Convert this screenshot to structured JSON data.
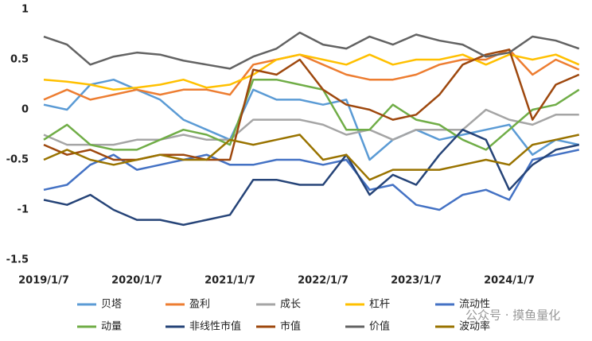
{
  "chart_data": {
    "type": "line",
    "categories": [
      "2019/1/7",
      null,
      null,
      null,
      "2020/1/7",
      null,
      null,
      null,
      "2021/1/7",
      null,
      null,
      null,
      "2022/1/7",
      null,
      null,
      null,
      "2023/1/7",
      null,
      null,
      null,
      "2024/1/7",
      null,
      null,
      null
    ],
    "ylim": [
      -1.5,
      1
    ],
    "yticks": [
      1,
      0.5,
      0,
      -0.5,
      -1,
      -1.5
    ],
    "grid": false,
    "watermark": "公众号 · 摸鱼量化",
    "series": [
      {
        "name": "贝塔",
        "color": "#5b9bd5",
        "values": [
          0.05,
          0.0,
          0.25,
          0.3,
          0.2,
          0.1,
          -0.1,
          -0.2,
          -0.3,
          0.2,
          0.1,
          0.1,
          0.05,
          0.1,
          -0.5,
          -0.3,
          -0.2,
          -0.3,
          -0.25,
          -0.2,
          -0.15,
          -0.45,
          -0.3,
          -0.35
        ]
      },
      {
        "name": "盈利",
        "color": "#ed7d31",
        "values": [
          0.1,
          0.2,
          0.1,
          0.15,
          0.2,
          0.15,
          0.2,
          0.2,
          0.15,
          0.45,
          0.5,
          0.55,
          0.45,
          0.35,
          0.3,
          0.3,
          0.35,
          0.45,
          0.5,
          0.5,
          0.6,
          0.35,
          0.5,
          0.4
        ]
      },
      {
        "name": "成长",
        "color": "#a5a5a5",
        "values": [
          -0.25,
          -0.35,
          -0.35,
          -0.35,
          -0.3,
          -0.3,
          -0.25,
          -0.3,
          -0.3,
          -0.1,
          -0.1,
          -0.1,
          -0.15,
          -0.25,
          -0.2,
          -0.3,
          -0.2,
          -0.2,
          -0.2,
          0.0,
          -0.1,
          -0.15,
          -0.05,
          -0.05
        ]
      },
      {
        "name": "杠杆",
        "color": "#ffc000",
        "values": [
          0.3,
          0.28,
          0.25,
          0.2,
          0.22,
          0.25,
          0.3,
          0.22,
          0.25,
          0.35,
          0.5,
          0.55,
          0.5,
          0.45,
          0.55,
          0.45,
          0.5,
          0.5,
          0.55,
          0.45,
          0.55,
          0.5,
          0.55,
          0.45
        ]
      },
      {
        "name": "流动性",
        "color": "#4472c4",
        "values": [
          -0.8,
          -0.75,
          -0.55,
          -0.45,
          -0.6,
          -0.55,
          -0.5,
          -0.45,
          -0.55,
          -0.55,
          -0.5,
          -0.5,
          -0.55,
          -0.5,
          -0.8,
          -0.75,
          -0.95,
          -1.0,
          -0.85,
          -0.8,
          -0.9,
          -0.5,
          -0.45,
          -0.4
        ]
      },
      {
        "name": "动量",
        "color": "#70ad47",
        "values": [
          -0.3,
          -0.15,
          -0.35,
          -0.4,
          -0.4,
          -0.3,
          -0.2,
          -0.25,
          -0.35,
          0.3,
          0.3,
          0.25,
          0.2,
          -0.2,
          -0.2,
          0.05,
          -0.1,
          -0.15,
          -0.3,
          -0.4,
          -0.2,
          0.0,
          0.05,
          0.2
        ]
      },
      {
        "name": "非线性市值",
        "color": "#264478",
        "values": [
          -0.9,
          -0.95,
          -0.85,
          -1.0,
          -1.1,
          -1.1,
          -1.15,
          -1.1,
          -1.05,
          -0.7,
          -0.7,
          -0.75,
          -0.75,
          -0.45,
          -0.85,
          -0.65,
          -0.75,
          -0.45,
          -0.2,
          -0.3,
          -0.8,
          -0.55,
          -0.4,
          -0.35
        ]
      },
      {
        "name": "市值",
        "color": "#9e480e",
        "values": [
          -0.35,
          -0.45,
          -0.4,
          -0.5,
          -0.5,
          -0.45,
          -0.45,
          -0.5,
          -0.5,
          0.4,
          0.35,
          0.5,
          0.2,
          0.05,
          0.0,
          -0.1,
          -0.05,
          0.15,
          0.45,
          0.55,
          0.6,
          -0.1,
          0.25,
          0.35
        ]
      },
      {
        "name": "价值",
        "color": "#636363",
        "values": [
          0.73,
          0.65,
          0.45,
          0.53,
          0.57,
          0.55,
          0.49,
          0.45,
          0.41,
          0.53,
          0.61,
          0.77,
          0.65,
          0.61,
          0.73,
          0.65,
          0.75,
          0.69,
          0.65,
          0.53,
          0.57,
          0.73,
          0.69,
          0.61
        ]
      },
      {
        "name": "波动率",
        "color": "#997300",
        "values": [
          -0.5,
          -0.4,
          -0.5,
          -0.55,
          -0.5,
          -0.45,
          -0.5,
          -0.5,
          -0.3,
          -0.35,
          -0.3,
          -0.25,
          -0.5,
          -0.45,
          -0.7,
          -0.6,
          -0.6,
          -0.6,
          -0.55,
          -0.5,
          -0.55,
          -0.35,
          -0.3,
          -0.25
        ]
      }
    ]
  }
}
